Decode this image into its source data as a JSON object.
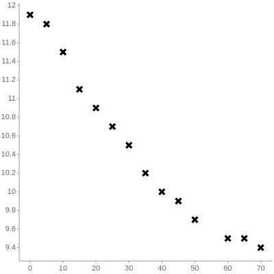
{
  "chart_data": {
    "type": "scatter",
    "x": [
      0,
      5,
      10,
      15,
      20,
      25,
      30,
      35,
      40,
      45,
      50,
      60,
      65,
      70
    ],
    "values": [
      11.9,
      11.8,
      11.5,
      11.1,
      10.9,
      10.7,
      10.5,
      10.2,
      10.0,
      9.9,
      9.7,
      9.5,
      9.5,
      9.4
    ],
    "color": "#000000",
    "xlim": [
      -3.3,
      73.6
    ],
    "xticks": [
      0,
      10,
      20,
      30,
      40,
      50,
      60,
      70
    ],
    "ylim": [
      9.257,
      12.022
    ],
    "yticks": [
      9.4,
      9.6,
      9.8,
      10,
      10.2,
      10.4,
      10.6,
      10.8,
      11,
      11.2,
      11.4,
      11.6,
      11.8,
      12
    ],
    "grid": false
  }
}
